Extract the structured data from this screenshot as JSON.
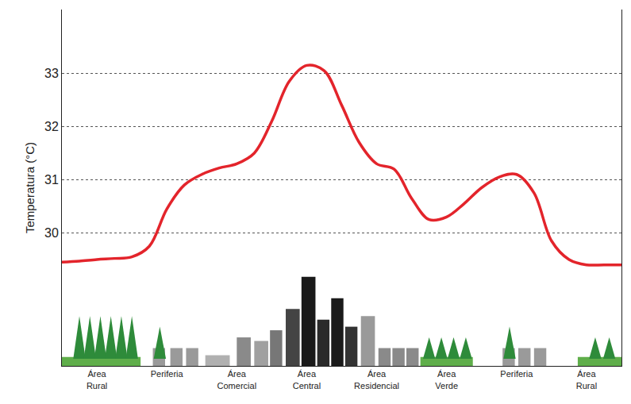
{
  "chart_data": {
    "type": "line",
    "y_label": "Temperatura (°C)",
    "categories": [
      null,
      null,
      "Área Rural",
      null,
      null,
      null,
      "Periferia",
      null,
      null,
      null,
      "Área Comercial",
      null,
      null,
      null,
      "Área Central",
      null,
      null,
      null,
      "Área Residencial",
      null,
      null,
      null,
      "Área Verde",
      null,
      null,
      null,
      "Periferia",
      null,
      null,
      null,
      "Área Rural",
      null,
      null
    ],
    "values": [
      29.45,
      29.47,
      29.5,
      29.52,
      29.55,
      29.75,
      30.45,
      30.9,
      31.1,
      31.22,
      31.3,
      31.5,
      32.1,
      32.85,
      33.15,
      33.05,
      32.4,
      31.7,
      31.3,
      31.2,
      30.65,
      30.25,
      30.3,
      30.55,
      30.85,
      31.05,
      31.1,
      30.75,
      29.85,
      29.5,
      29.4,
      29.4,
      29.4
    ],
    "color": "#e3242b",
    "ylim": [
      27.5,
      34.2
    ],
    "yticks": [
      30,
      31,
      32,
      33
    ],
    "grid": true
  }
}
